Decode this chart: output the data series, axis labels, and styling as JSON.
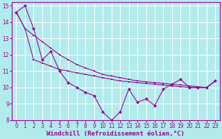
{
  "x": [
    0,
    1,
    2,
    3,
    4,
    5,
    6,
    7,
    8,
    9,
    10,
    11,
    12,
    13,
    14,
    15,
    16,
    17,
    18,
    19,
    20,
    21,
    22,
    23
  ],
  "jagged": [
    14.6,
    15.0,
    13.6,
    11.7,
    12.2,
    11.0,
    10.3,
    10.0,
    9.7,
    9.5,
    8.5,
    8.0,
    8.5,
    9.9,
    9.1,
    9.3,
    8.9,
    9.9,
    10.2,
    10.5,
    10.0,
    10.0,
    10.0,
    10.4
  ],
  "smooth_upper": [
    14.6,
    13.6,
    13.2,
    12.8,
    12.4,
    12.0,
    11.7,
    11.4,
    11.2,
    11.0,
    10.8,
    10.7,
    10.6,
    10.5,
    10.4,
    10.35,
    10.3,
    10.25,
    10.2,
    10.15,
    10.1,
    10.05,
    10.0,
    10.4
  ],
  "smooth_lower": [
    14.6,
    13.6,
    11.7,
    11.5,
    11.3,
    11.1,
    11.0,
    10.9,
    10.8,
    10.7,
    10.6,
    10.5,
    10.4,
    10.35,
    10.3,
    10.25,
    10.2,
    10.15,
    10.1,
    10.05,
    10.0,
    10.0,
    10.0,
    10.4
  ],
  "xlim": [
    -0.5,
    23.5
  ],
  "ylim": [
    8,
    15
  ],
  "yticks": [
    8,
    9,
    10,
    11,
    12,
    13,
    14,
    15
  ],
  "xticks": [
    0,
    1,
    2,
    3,
    4,
    5,
    6,
    7,
    8,
    9,
    10,
    11,
    12,
    13,
    14,
    15,
    16,
    17,
    18,
    19,
    20,
    21,
    22,
    23
  ],
  "xlabel": "Windchill (Refroidissement éolien,°C)",
  "color": "#990099",
  "bg_color": "#b2ebeb",
  "grid_color": "#ffffff",
  "tick_fontsize": 5.5,
  "label_fontsize": 6.5
}
